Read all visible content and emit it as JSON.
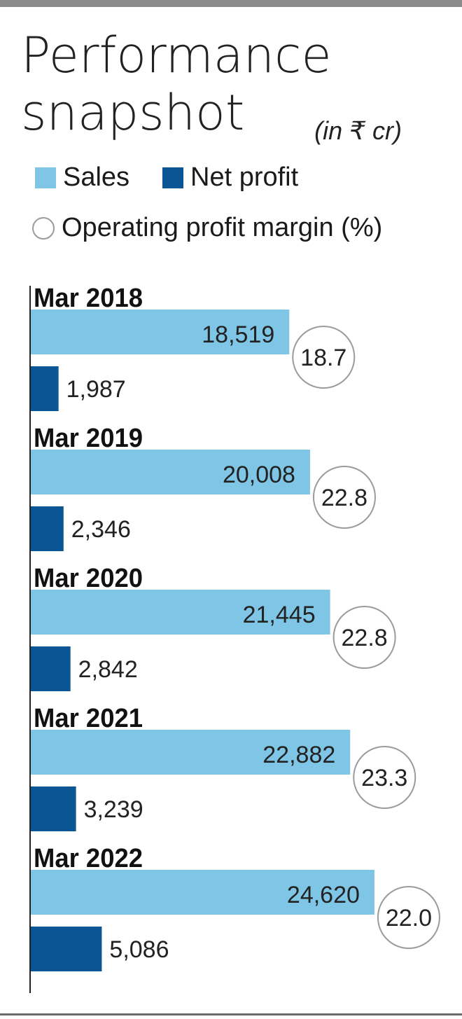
{
  "header": {
    "title_line1": "Performance",
    "title_line2": "snapshot",
    "unit": "(in ₹ cr)"
  },
  "legend": {
    "sales": "Sales",
    "net_profit": "Net profit",
    "opm": "Operating profit margin (%)"
  },
  "colors": {
    "sales": "#7fc6e6",
    "net_profit": "#0a5593",
    "circle_border": "#9b9b9b",
    "axis": "#222222"
  },
  "chart_data": {
    "type": "bar",
    "orientation": "horizontal",
    "categories": [
      "Mar 2018",
      "Mar 2019",
      "Mar 2020",
      "Mar 2021",
      "Mar 2022"
    ],
    "series": [
      {
        "name": "Sales",
        "values": [
          18519,
          20008,
          21445,
          22882,
          24620
        ],
        "labels": [
          "18,519",
          "20,008",
          "21,445",
          "22,882",
          "24,620"
        ]
      },
      {
        "name": "Net profit",
        "values": [
          1987,
          2346,
          2842,
          3239,
          5086
        ],
        "labels": [
          "1,987",
          "2,346",
          "2,842",
          "3,239",
          "5,086"
        ]
      },
      {
        "name": "Operating profit margin (%)",
        "values": [
          18.7,
          22.8,
          22.8,
          23.3,
          22.0
        ],
        "labels": [
          "18.7",
          "22.8",
          "22.8",
          "23.3",
          "22.0"
        ]
      }
    ],
    "legend_position": "top",
    "grid": false
  }
}
